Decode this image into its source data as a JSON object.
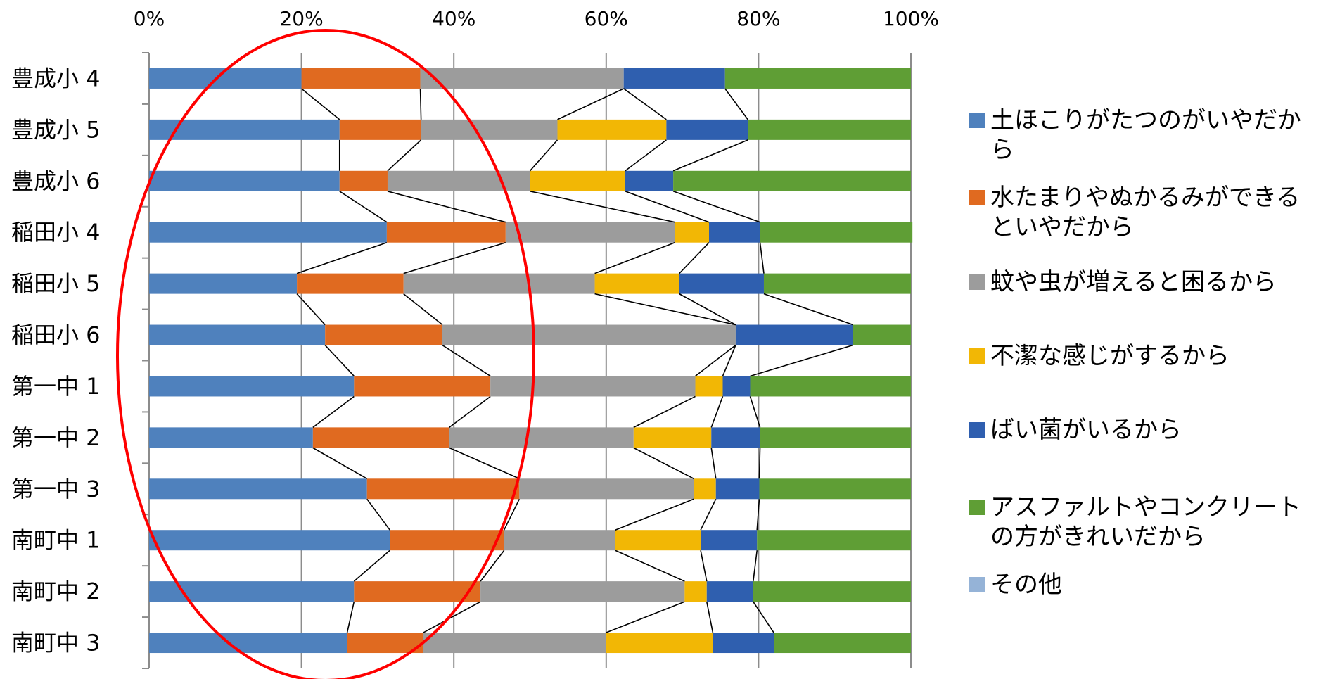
{
  "chart_data": {
    "type": "bar",
    "stacked": "percent",
    "orientation": "horizontal",
    "categories": [
      "豊成小 4",
      "豊成小 5",
      "豊成小 6",
      "稲田小 4",
      "稲田小 5",
      "稲田小 6",
      "第一中 1",
      "第一中 2",
      "第一中 3",
      "南町中 1",
      "南町中 2",
      "南町中 3"
    ],
    "xticks": [
      "0%",
      "20%",
      "40%",
      "60%",
      "80%",
      "100%"
    ],
    "xlim": [
      0,
      100
    ],
    "grid": "vertical",
    "legend_position": "right",
    "series": [
      {
        "name": "土ほこりがたつのがいやだから",
        "color": "#4F81BD",
        "values": [
          20.0,
          25.0,
          25.0,
          31.2,
          19.4,
          23.1,
          26.9,
          21.5,
          28.6,
          31.6,
          26.9,
          26.0
        ]
      },
      {
        "name": "水たまりやぬかるみができるといやだから",
        "color": "#E06A20",
        "values": [
          15.6,
          10.7,
          6.3,
          15.6,
          14.0,
          15.4,
          17.9,
          17.9,
          20.0,
          15.0,
          16.6,
          10.0
        ]
      },
      {
        "name": "蚊や虫が増えると困るから",
        "color": "#9C9C9C",
        "values": [
          26.7,
          17.9,
          18.7,
          22.2,
          25.1,
          38.5,
          26.9,
          24.2,
          22.9,
          14.6,
          26.8,
          24.0
        ]
      },
      {
        "name": "不潔な感じがするから",
        "color": "#F2B705",
        "values": [
          0,
          14.3,
          12.5,
          4.5,
          11.1,
          0,
          3.6,
          10.2,
          2.9,
          11.2,
          2.9,
          14.0
        ]
      },
      {
        "name": "ばい菌がいるから",
        "color": "#2F5FAF",
        "values": [
          13.3,
          10.7,
          6.3,
          6.7,
          11.1,
          15.4,
          3.6,
          6.4,
          5.7,
          7.4,
          6.1,
          8.0
        ]
      },
      {
        "name": "アスファルトやコンクリートの方がきれいだから",
        "color": "#5F9E35",
        "values": [
          24.4,
          21.4,
          31.2,
          20.0,
          19.3,
          7.6,
          21.1,
          19.8,
          19.9,
          20.2,
          20.7,
          18.0
        ]
      },
      {
        "name": "その他",
        "color": "#95B3D7",
        "values": [
          0,
          0,
          0,
          0,
          0,
          0,
          0,
          0,
          0,
          0,
          0,
          0
        ]
      }
    ]
  }
}
